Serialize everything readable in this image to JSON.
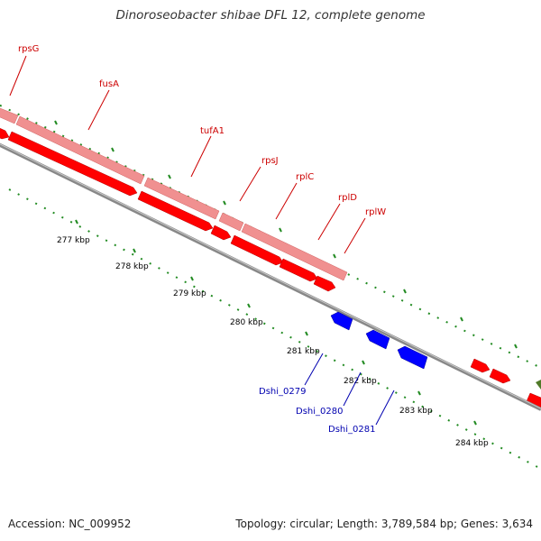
{
  "title": "Dinoroseobacter shibae DFL 12, complete genome",
  "footer": {
    "accession": "Accession: NC_009952",
    "summary": "Topology: circular; Length: 3,789,584 bp; Genes: 3,634"
  },
  "tick_labels": [
    "277 kbp",
    "278 kbp",
    "279 kbp",
    "280 kbp",
    "281 kbp",
    "282 kbp",
    "283 kbp",
    "284 kbp"
  ],
  "forward_labels": [
    "rpsG",
    "fusA",
    "tufA1",
    "rpsJ",
    "rplC",
    "rplD",
    "rplW"
  ],
  "reverse_labels": [
    "Dshi_0279",
    "Dshi_0280",
    "Dshi_0281"
  ],
  "colors": {
    "cds_forward": "#ff0000",
    "feature_forward": "#f09090",
    "cds_reverse": "#0000ff",
    "backbone": "#909090",
    "ticks": "#228b22",
    "label_forward": "#cc0000",
    "label_reverse": "#0000b0"
  }
}
